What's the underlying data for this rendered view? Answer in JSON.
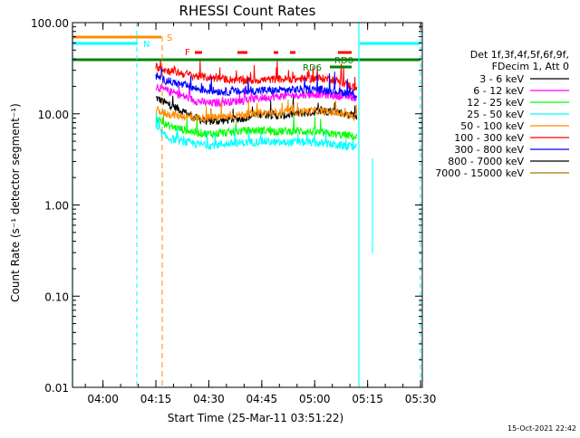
{
  "chart_data": {
    "type": "line",
    "title": "RHESSI Count Rates",
    "xlabel_prefix": "Start Time (",
    "xlabel_date": "25-Mar-11 03:51:22",
    "xlabel_suffix": ")",
    "ylabel": "Count Rate (s⁻¹ detector segment⁻¹)",
    "y_scale": "log",
    "ylim": [
      0.01,
      100
    ],
    "xlim": [
      "03:51:22",
      "05:30:30"
    ],
    "x_ticks": [
      "04:00",
      "04:15",
      "04:30",
      "04:45",
      "05:00",
      "05:15",
      "05:30"
    ],
    "y_ticks": [
      "0.01",
      "0.10",
      "1.00",
      "10.00",
      "100.00"
    ],
    "footer_timestamp": "15-Oct-2021 22:42",
    "legend": {
      "placement": "right",
      "header_line1": "Det 1f,3f,4f,5f,6f,9f,",
      "header_line2": "FDecim 1, Att 0",
      "entries": [
        {
          "label": "3 - 6 keV",
          "color": "#000000"
        },
        {
          "label": "6 - 12 keV",
          "color": "#ff00ff"
        },
        {
          "label": "12 - 25 keV",
          "color": "#00ff00"
        },
        {
          "label": "25 - 50 keV",
          "color": "#00ffff"
        },
        {
          "label": "50 - 100 keV",
          "color": "#ff8c00"
        },
        {
          "label": "100 - 300 keV",
          "color": "#ff0000"
        },
        {
          "label": "300 - 800 keV",
          "color": "#0000ff"
        },
        {
          "label": "800 - 7000 keV",
          "color": "#000000"
        },
        {
          "label": "7000 - 15000 keV",
          "color": "#aa7700"
        }
      ]
    },
    "series": [
      {
        "label": "3 - 6 keV",
        "color": "#000000",
        "x": [
          "04:15",
          "04:18",
          "04:22",
          "04:26",
          "04:30",
          "04:35",
          "04:40",
          "04:45",
          "04:50",
          "04:55",
          "05:00",
          "05:05",
          "05:09",
          "05:12"
        ],
        "y": [
          15,
          13,
          11,
          9,
          8.2,
          8.5,
          9,
          10,
          9.5,
          10,
          10.5,
          10.8,
          10,
          9.5
        ]
      },
      {
        "label": "6 - 12 keV",
        "color": "#ff00ff",
        "x": [
          "04:15",
          "04:18",
          "04:22",
          "04:26",
          "04:30",
          "04:35",
          "04:40",
          "04:45",
          "04:50",
          "04:55",
          "05:00",
          "05:05",
          "05:09",
          "05:12"
        ],
        "y": [
          20,
          18,
          16,
          14,
          13,
          13.5,
          14,
          15,
          15.5,
          16,
          16.5,
          16,
          15.5,
          15
        ]
      },
      {
        "label": "12 - 25 keV",
        "color": "#00ff00",
        "x": [
          "04:15",
          "04:18",
          "04:22",
          "04:26",
          "04:30",
          "04:35",
          "04:40",
          "04:45",
          "04:50",
          "04:55",
          "05:00",
          "05:05",
          "05:09",
          "05:12"
        ],
        "y": [
          9,
          7.5,
          6.8,
          6.3,
          6,
          6.2,
          6.5,
          6.6,
          6.4,
          6.5,
          6.3,
          6,
          5.8,
          5.5
        ]
      },
      {
        "label": "25 - 50 keV",
        "color": "#00ffff",
        "x": [
          "04:15",
          "04:18",
          "04:22",
          "04:26",
          "04:30",
          "04:35",
          "04:40",
          "04:45",
          "04:50",
          "04:55",
          "05:00",
          "05:05",
          "05:09",
          "05:12"
        ],
        "y": [
          7,
          5.5,
          5,
          4.7,
          4.5,
          4.7,
          4.8,
          5,
          4.8,
          4.9,
          4.8,
          4.6,
          4.4,
          4.2
        ]
      },
      {
        "label": "50 - 100 keV",
        "color": "#ff8c00",
        "x": [
          "04:15",
          "04:18",
          "04:22",
          "04:26",
          "04:30",
          "04:35",
          "04:40",
          "04:45",
          "04:50",
          "04:55",
          "05:00",
          "05:05",
          "05:09",
          "05:12"
        ],
        "y": [
          11,
          10,
          9.5,
          9,
          9,
          9.3,
          9.8,
          10.2,
          10.3,
          10.6,
          10.8,
          10.4,
          9.7,
          9
        ]
      },
      {
        "label": "100 - 300 keV",
        "color": "#ff0000",
        "x": [
          "04:15",
          "04:18",
          "04:22",
          "04:26",
          "04:30",
          "04:35",
          "04:40",
          "04:45",
          "04:50",
          "04:55",
          "05:00",
          "05:05",
          "05:09",
          "05:12"
        ],
        "y": [
          33,
          30,
          28,
          26,
          25,
          24,
          23,
          23.5,
          24,
          24,
          24.5,
          24,
          21,
          19
        ]
      },
      {
        "label": "300 - 800 keV",
        "color": "#0000ff",
        "x": [
          "04:15",
          "04:18",
          "04:22",
          "04:26",
          "04:30",
          "04:35",
          "04:40",
          "04:45",
          "04:50",
          "04:55",
          "05:00",
          "05:05",
          "05:09",
          "05:12"
        ],
        "y": [
          26,
          23,
          21,
          19,
          18,
          17.5,
          17.5,
          18,
          18,
          18.5,
          18.5,
          18,
          17,
          16
        ]
      }
    ],
    "attenuator_state_labels": [
      "N",
      "S",
      "F",
      "RD6",
      "RD0"
    ]
  }
}
